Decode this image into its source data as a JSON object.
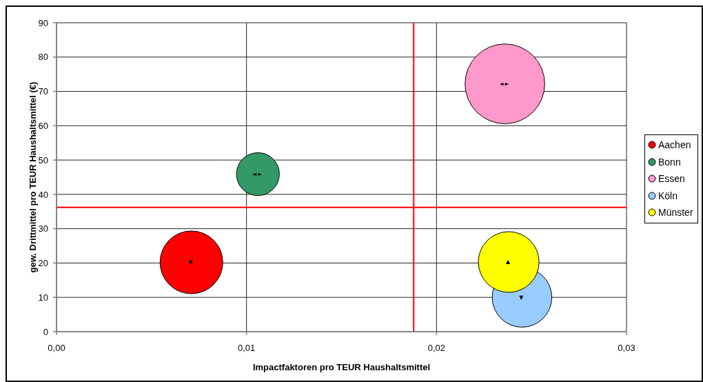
{
  "chart_data": {
    "type": "bubble",
    "xlabel": "Impactfaktoren pro TEUR Haushaltsmittel",
    "ylabel": "gew. Drittmittel pro TEUR Haushaltsmittel (€)",
    "xlim": [
      0,
      0.03
    ],
    "xticks": [
      {
        "value": 0,
        "label": "0,00"
      },
      {
        "value": 0.01,
        "label": "0,01"
      },
      {
        "value": 0.02,
        "label": "0,02"
      },
      {
        "value": 0.03,
        "label": "0,03"
      }
    ],
    "ylim": [
      0,
      90
    ],
    "yticks": [
      0,
      10,
      20,
      30,
      40,
      50,
      60,
      70,
      80,
      90
    ],
    "grid": true,
    "legend": "right",
    "series": [
      {
        "name": "Aachen",
        "color": "#ff0000",
        "x": [
          0.0071
        ],
        "values": [
          20.2
        ],
        "sizes": [
          0.62
        ]
      },
      {
        "name": "Bonn",
        "color": "#339966",
        "x": [
          0.0106
        ],
        "values": [
          45.9
        ],
        "sizes": [
          0.29
        ]
      },
      {
        "name": "Essen",
        "color": "#ff99cc",
        "x": [
          0.0236
        ],
        "values": [
          72.2
        ],
        "sizes": [
          1
        ]
      },
      {
        "name": "Köln",
        "color": "#99ccff",
        "x": [
          0.0245
        ],
        "values": [
          10.0
        ],
        "sizes": [
          0.56
        ]
      },
      {
        "name": "Münster",
        "color": "#ffff00",
        "x": [
          0.0238
        ],
        "values": [
          20.3
        ],
        "sizes": [
          0.58
        ]
      }
    ],
    "ref_lines": [
      {
        "axis": "x",
        "value": 0.0188,
        "color": "#ff0000"
      },
      {
        "axis": "y",
        "value": 36.2,
        "color": "#ff0000"
      }
    ],
    "annotations": [
      {
        "text": "▼",
        "x": 0.0071,
        "y": 20.2
      },
      {
        "text": "◄►",
        "x": 0.0106,
        "y": 45.9
      },
      {
        "text": "◄►",
        "x": 0.0236,
        "y": 72.2
      },
      {
        "text": "▼",
        "x": 0.0245,
        "y": 10.0
      },
      {
        "text": "▲",
        "x": 0.0238,
        "y": 20.3
      }
    ]
  }
}
